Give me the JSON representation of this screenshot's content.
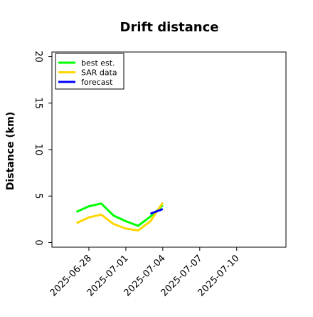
{
  "chart_data": {
    "type": "line",
    "title": "Drift distance",
    "xlabel": "",
    "ylabel": "Distance (km)",
    "xlim": [
      "2025-06-25",
      "2025-07-14"
    ],
    "ylim": [
      -0.5,
      20.5
    ],
    "yticks": [
      0,
      5,
      10,
      15,
      20
    ],
    "xticks": [
      "2025-06-28",
      "2025-07-01",
      "2025-07-04",
      "2025-07-07",
      "2025-07-10"
    ],
    "grid": false,
    "legend_position": "top-left",
    "series": [
      {
        "name": "best est.",
        "color": "#00ff00",
        "x": [
          "2025-06-27",
          "2025-06-28",
          "2025-06-29",
          "2025-06-30",
          "2025-07-01",
          "2025-07-02",
          "2025-07-03",
          "2025-07-04"
        ],
        "y": [
          3.3,
          3.9,
          4.2,
          2.9,
          2.3,
          1.8,
          2.8,
          4.0
        ]
      },
      {
        "name": "SAR data",
        "color": "#ffd700",
        "x": [
          "2025-06-27",
          "2025-06-28",
          "2025-06-29",
          "2025-06-30",
          "2025-07-01",
          "2025-07-02",
          "2025-07-03",
          "2025-07-04"
        ],
        "y": [
          2.1,
          2.7,
          3.0,
          2.0,
          1.5,
          1.3,
          2.3,
          4.3
        ]
      },
      {
        "name": "forecast",
        "color": "#0000ff",
        "x": [
          "2025-07-03",
          "2025-07-04"
        ],
        "y": [
          3.1,
          3.6
        ]
      }
    ]
  }
}
